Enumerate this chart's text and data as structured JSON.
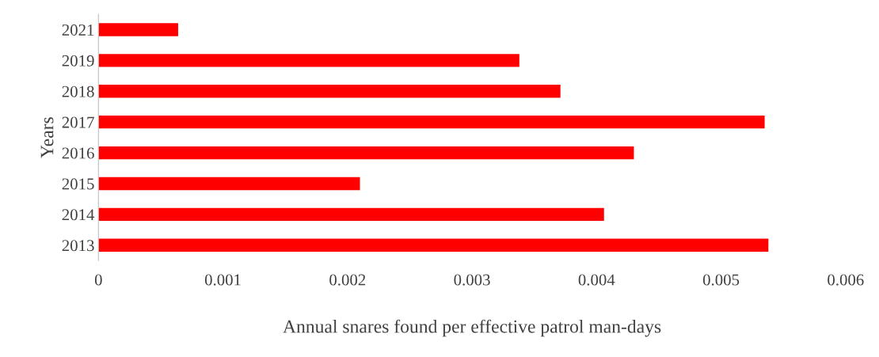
{
  "chart_data": {
    "type": "bar",
    "orientation": "horizontal",
    "categories": [
      "2021",
      "2019",
      "2018",
      "2017",
      "2016",
      "2015",
      "2014",
      "2013"
    ],
    "values": [
      0.00064,
      0.00338,
      0.00371,
      0.00535,
      0.0043,
      0.0021,
      0.00406,
      0.00538
    ],
    "color": "#ff0000",
    "xlim": [
      0,
      0.006
    ],
    "xticks": [
      0,
      0.001,
      0.002,
      0.003,
      0.004,
      0.005,
      0.006
    ],
    "xlabel": "Annual snares found per effective patrol man-days",
    "ylabel": "Years",
    "grid": false,
    "legend": false
  }
}
